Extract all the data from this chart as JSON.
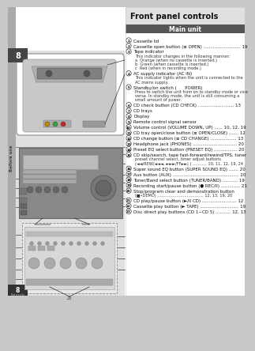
{
  "page_bg": "#c8c8c8",
  "content_bg": "#ffffff",
  "title": "Front panel controls",
  "title_bg": "#e0e0e0",
  "title_color": "#000000",
  "section_header": "Main unit",
  "section_header_bg": "#555555",
  "section_header_color": "#ffffff",
  "items": [
    {
      "num": "1",
      "text": "Cassette lid",
      "extra": []
    },
    {
      "num": "2",
      "text": "Cassette open button (≡ OPEN) ........................... 19",
      "extra": []
    },
    {
      "num": "3",
      "text": "Tape indicator",
      "extra": [
        "This indicator changes in the following manner:",
        "a  Orange (when no cassette is inserted.)",
        "b  Green (when cassette is inserted.)",
        "c  Red (when in recording mode.)"
      ]
    },
    {
      "num": "4",
      "text": "AC supply indicator (AC IN)",
      "extra": [
        "This indicator lights when the unit is connected to the",
        "AC mains supply."
      ]
    },
    {
      "num": "5",
      "text": "Standby/on switch (      POWER)",
      "extra": [
        "Press to switch the unit from on to standby mode or vice",
        "versa. In standby mode, the unit is still consuming a",
        "small amount of power."
      ]
    },
    {
      "num": "6",
      "text": "CD check button (CD CHECK) .......................... 13",
      "extra": []
    },
    {
      "num": "7",
      "text": "CD trays",
      "extra": []
    },
    {
      "num": "8",
      "text": "Display",
      "extra": []
    },
    {
      "num": "9",
      "text": "Remote control signal sensor",
      "extra": []
    },
    {
      "num": "10",
      "text": "Volume control (VOLUME DOWN, UP) ...... 10, 12, 19",
      "extra": []
    },
    {
      "num": "11",
      "text": "CD tray open/close button (≡ OPEN/CLOSE) ....... 12",
      "extra": []
    },
    {
      "num": "12",
      "text": "CD change button (≡ CD CHANGE) ................... 13",
      "extra": []
    },
    {
      "num": "13",
      "text": "Headphone jack (PHONES) ................................ 20",
      "extra": []
    },
    {
      "num": "14",
      "text": "Preset EQ select button (PRESET EQ) ................. 20",
      "extra": []
    },
    {
      "num": "15",
      "text": "CD skip/search, tape fast-forward/rewind/TPS, tuner",
      "extra": [
        "preset channel select, timer adjust buttons",
        "(◄◄/REW/◄◄◄, ►►►/FF►►| ) ........... 10, 11, 12, 19, 24"
      ]
    },
    {
      "num": "16",
      "text": "Super sound EQ button (SUPER SOUND EQ) ....... 20",
      "extra": []
    },
    {
      "num": "17",
      "text": "Aux button (AUX) ................................................ 20",
      "extra": []
    },
    {
      "num": "18",
      "text": "Tuner/Band select button (TUNER/BAND) ........... 19",
      "extra": []
    },
    {
      "num": "19",
      "text": "Recording start/pause button (● REC/II) .............. 21",
      "extra": []
    },
    {
      "num": "20",
      "text": "Stop/program clear and demonstration button",
      "extra": [
        "(■•DEMO) .................................... 12, 13, 19, 20"
      ]
    },
    {
      "num": "21",
      "text": "CD play/pause button (►/II CD) ......................... 12",
      "extra": []
    },
    {
      "num": "22",
      "text": "Cassette play button (► TAPE) ............................ 19",
      "extra": []
    },
    {
      "num": "23",
      "text": "Disc direct play buttons (CD 1~CD 5) ........... 12, 13",
      "extra": []
    }
  ],
  "sidebar_text": "Before use",
  "page_num": "8"
}
